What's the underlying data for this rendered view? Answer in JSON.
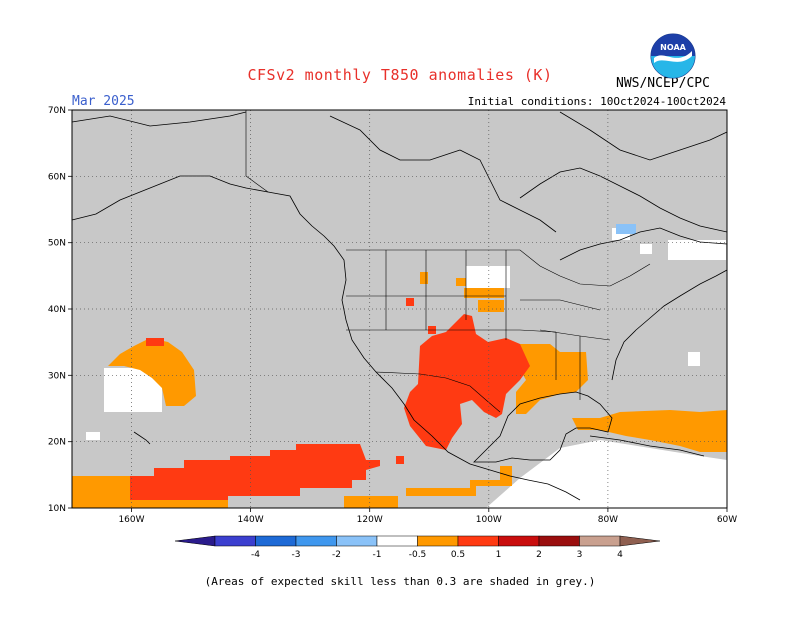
{
  "header": {
    "title": "CFSv2 monthly T850 anomalies (K)",
    "month": "Mar 2025",
    "initial_conditions": "Initial conditions: 10Oct2024-10Oct2024",
    "organization": "NWS/NCEP/CPC",
    "logo_text": "NOAA"
  },
  "map": {
    "lat_labels": [
      "70N",
      "60N",
      "50N",
      "40N",
      "30N",
      "20N",
      "10N"
    ],
    "lon_labels": [
      "160W",
      "140W",
      "120W",
      "100W",
      "80W",
      "60W"
    ],
    "lat_range": [
      10,
      70
    ],
    "lon_range": [
      -170,
      -60
    ],
    "grey_color": "#c8c8c8",
    "regions": [
      {
        "name": "subtropical-pacific-high-ring",
        "level": "0.5-1"
      },
      {
        "name": "eastern-pacific-band",
        "level": "1-2"
      },
      {
        "name": "southwest-us-mexico",
        "level": "1-2"
      },
      {
        "name": "gulf-coast-southeast",
        "level": "0.5-1"
      },
      {
        "name": "caribbean-atlantic",
        "level": "0.5-1"
      }
    ]
  },
  "colorbar": {
    "labels": [
      "-4",
      "-3",
      "-2",
      "-1",
      "-0.5",
      "0.5",
      "1",
      "2",
      "3",
      "4"
    ],
    "colors": [
      "#2a1b8c",
      "#3b3fcf",
      "#1e6ad6",
      "#3f97ee",
      "#8ac2f8",
      "#ffffff",
      "#ff9900",
      "#ff3a12",
      "#c90d0d",
      "#9a0e0e",
      "#c9a08f",
      "#8f5f50"
    ]
  },
  "footer": {
    "note": "(Areas of expected skill less than 0.3 are shaded in grey.)"
  }
}
